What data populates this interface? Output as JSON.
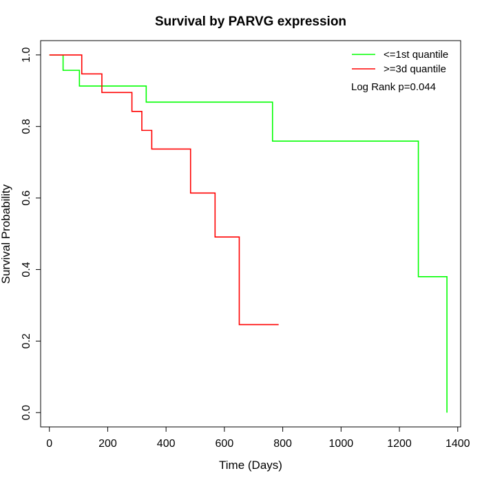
{
  "chart_data": {
    "type": "line",
    "title": "Survival by PARVG expression",
    "xlabel": "Time (Days)",
    "ylabel": "Survival Probability",
    "xlim": [
      -30,
      1410
    ],
    "ylim": [
      -0.04,
      1.04
    ],
    "x_ticks": [
      0,
      200,
      400,
      600,
      800,
      1000,
      1200,
      1400
    ],
    "y_ticks": [
      0.0,
      0.2,
      0.4,
      0.6,
      0.8,
      1.0
    ],
    "x_tick_labels": [
      "0",
      "200",
      "400",
      "600",
      "800",
      "1000",
      "1200",
      "1400"
    ],
    "y_tick_labels": [
      "0.0",
      "0.2",
      "0.4",
      "0.6",
      "0.8",
      "1.0"
    ],
    "grid": false,
    "legend_position": "top-right",
    "annotation": "Log Rank p=0.044",
    "series": [
      {
        "name": "<=1st quantile",
        "color": "#00ff00",
        "step": true,
        "points": [
          {
            "x": 0,
            "y": 1.0
          },
          {
            "x": 47,
            "y": 0.957
          },
          {
            "x": 103,
            "y": 0.913
          },
          {
            "x": 332,
            "y": 0.868
          },
          {
            "x": 765,
            "y": 0.759
          },
          {
            "x": 1265,
            "y": 0.38
          },
          {
            "x": 1363,
            "y": 0.0
          }
        ]
      },
      {
        "name": ">=3d quantile",
        "color": "#ff0000",
        "step": true,
        "points": [
          {
            "x": 0,
            "y": 1.0
          },
          {
            "x": 111,
            "y": 0.947
          },
          {
            "x": 180,
            "y": 0.895
          },
          {
            "x": 283,
            "y": 0.842
          },
          {
            "x": 317,
            "y": 0.789
          },
          {
            "x": 351,
            "y": 0.737
          },
          {
            "x": 484,
            "y": 0.614
          },
          {
            "x": 568,
            "y": 0.491
          },
          {
            "x": 651,
            "y": 0.246
          },
          {
            "x": 786,
            "y": 0.246
          }
        ]
      }
    ]
  }
}
